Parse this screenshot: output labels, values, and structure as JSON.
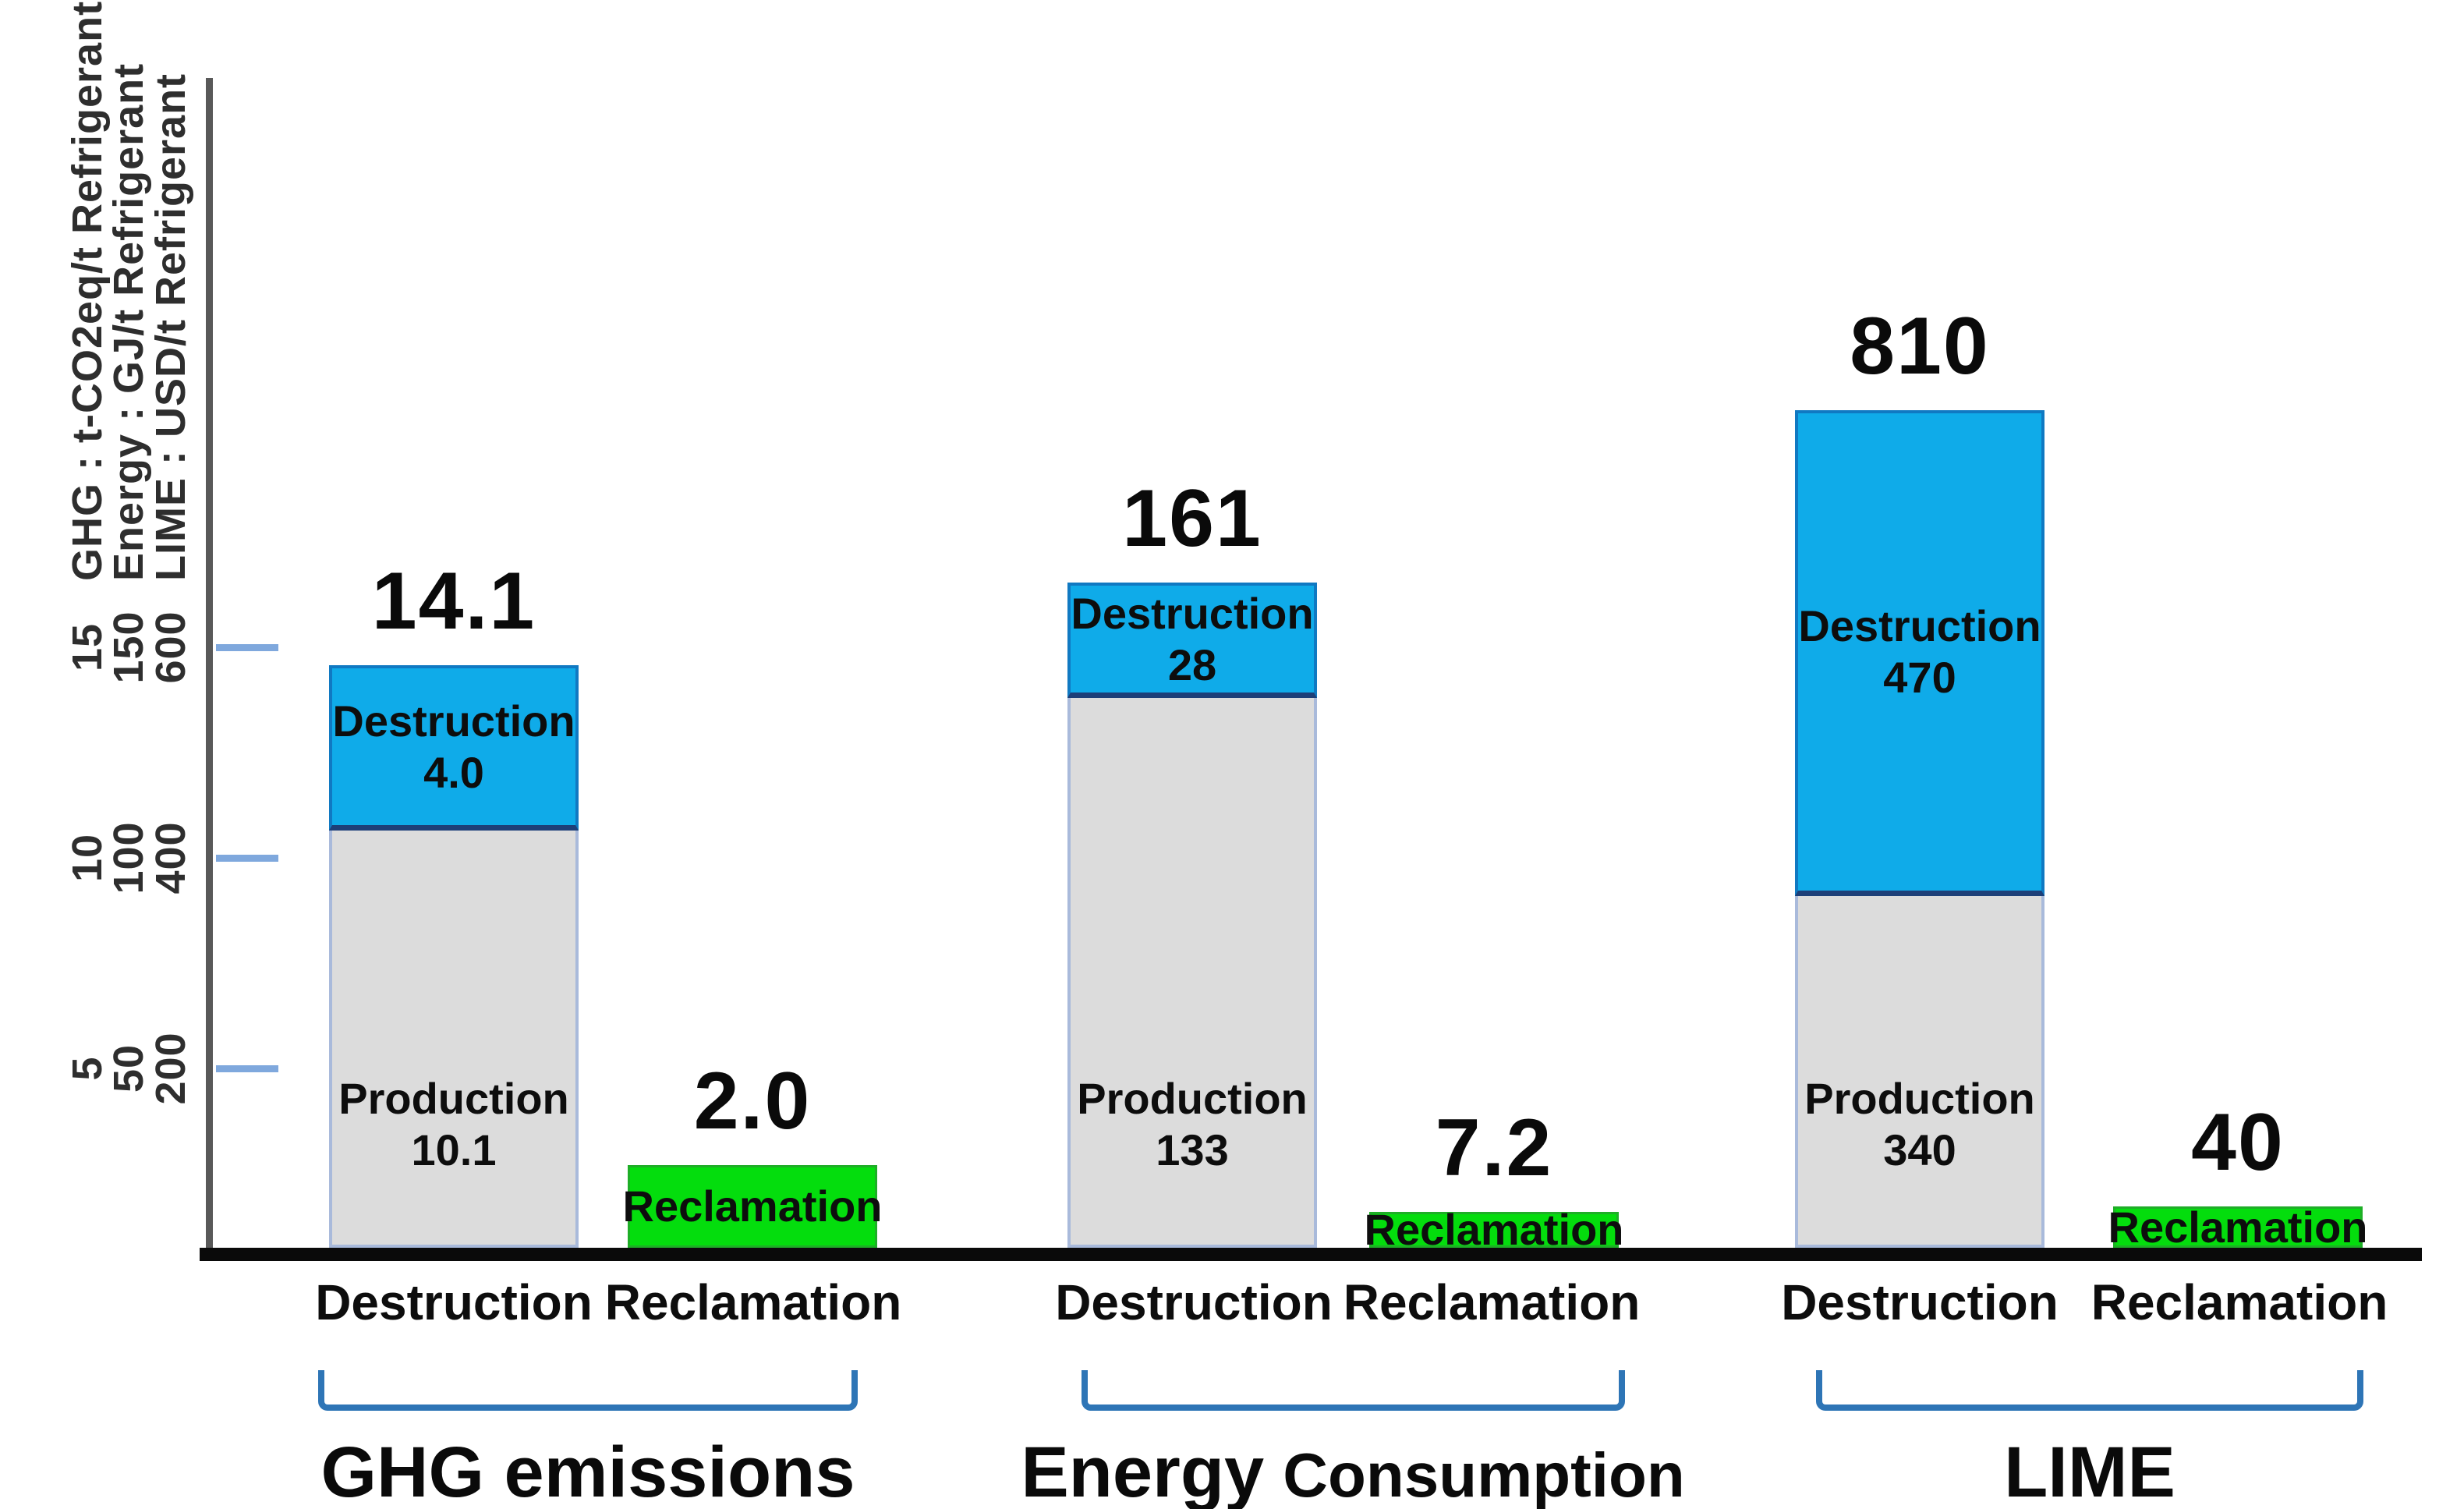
{
  "chart_data": {
    "type": "bar",
    "title": "",
    "axis_unit_labels": [
      "GHG : t-CO2eq/t Refrigerant",
      "Energy : GJ/t Refrigerant",
      "LIME : USD/t Refrigerant"
    ],
    "y_axis": {
      "tick_rows": [
        [
          "15",
          "150",
          "600"
        ],
        [
          "10",
          "100",
          "400"
        ],
        [
          "5",
          "50",
          "200"
        ]
      ],
      "ghg_axis_range": [
        0,
        15
      ],
      "energy_axis_range": [
        0,
        150
      ],
      "lime_axis_range": [
        0,
        600
      ],
      "grid": false
    },
    "legend_position": "none",
    "groups": [
      {
        "label": "GHG emissions",
        "unit_divisor": 1,
        "bars": [
          {
            "x_label": "Destruction",
            "total_label": "14.1",
            "total_value": 14.1,
            "segments": [
              {
                "name": "Destruction",
                "value": 4.0,
                "value_label": "4.0",
                "role": "destruction"
              },
              {
                "name": "Production",
                "value": 10.1,
                "value_label": "10.1",
                "role": "production"
              }
            ]
          },
          {
            "x_label": "Reclamation",
            "total_label": "2.0",
            "total_value": 2.0,
            "segments": [
              {
                "name": "Reclamation",
                "value": 2.0,
                "value_label": "",
                "role": "reclamation"
              }
            ]
          }
        ]
      },
      {
        "label": "Energy Consumption",
        "label_parts": [
          "Energy",
          "Consumption"
        ],
        "unit_divisor": 10,
        "bars": [
          {
            "x_label": "Destruction",
            "total_label": "161",
            "total_value": 161,
            "segments": [
              {
                "name": "Destruction",
                "value": 28,
                "value_label": "28",
                "role": "destruction"
              },
              {
                "name": "Production",
                "value": 133,
                "value_label": "133",
                "role": "production"
              }
            ]
          },
          {
            "x_label": "Reclamation",
            "total_label": "7.2",
            "total_value": 7.2,
            "segments": [
              {
                "name": "Reclamation",
                "value": 7.2,
                "value_label": "",
                "role": "reclamation"
              }
            ]
          }
        ]
      },
      {
        "label": "LIME",
        "unit_divisor": 40,
        "bars": [
          {
            "x_label": "Destruction",
            "total_label": "810",
            "total_value": 810,
            "segments": [
              {
                "name": "Destruction",
                "value": 470,
                "value_label": "470",
                "role": "destruction"
              },
              {
                "name": "Production",
                "value": 340,
                "value_label": "340",
                "role": "production"
              }
            ]
          },
          {
            "x_label": "Reclamation",
            "total_label": "40",
            "total_value": 40,
            "segments": [
              {
                "name": "Reclamation",
                "value": 40,
                "value_label": "",
                "role": "reclamation"
              }
            ]
          }
        ]
      }
    ],
    "colors": {
      "destruction_blue": "#0fabe9",
      "production_gray": "#dcdcdc",
      "reclamation_green": "#04dd0d",
      "bracket_blue": "#2e75b6",
      "tick_blue": "#7fa8dd",
      "axis_gray": "#595959",
      "baseline_black": "#0a0a0a"
    }
  }
}
